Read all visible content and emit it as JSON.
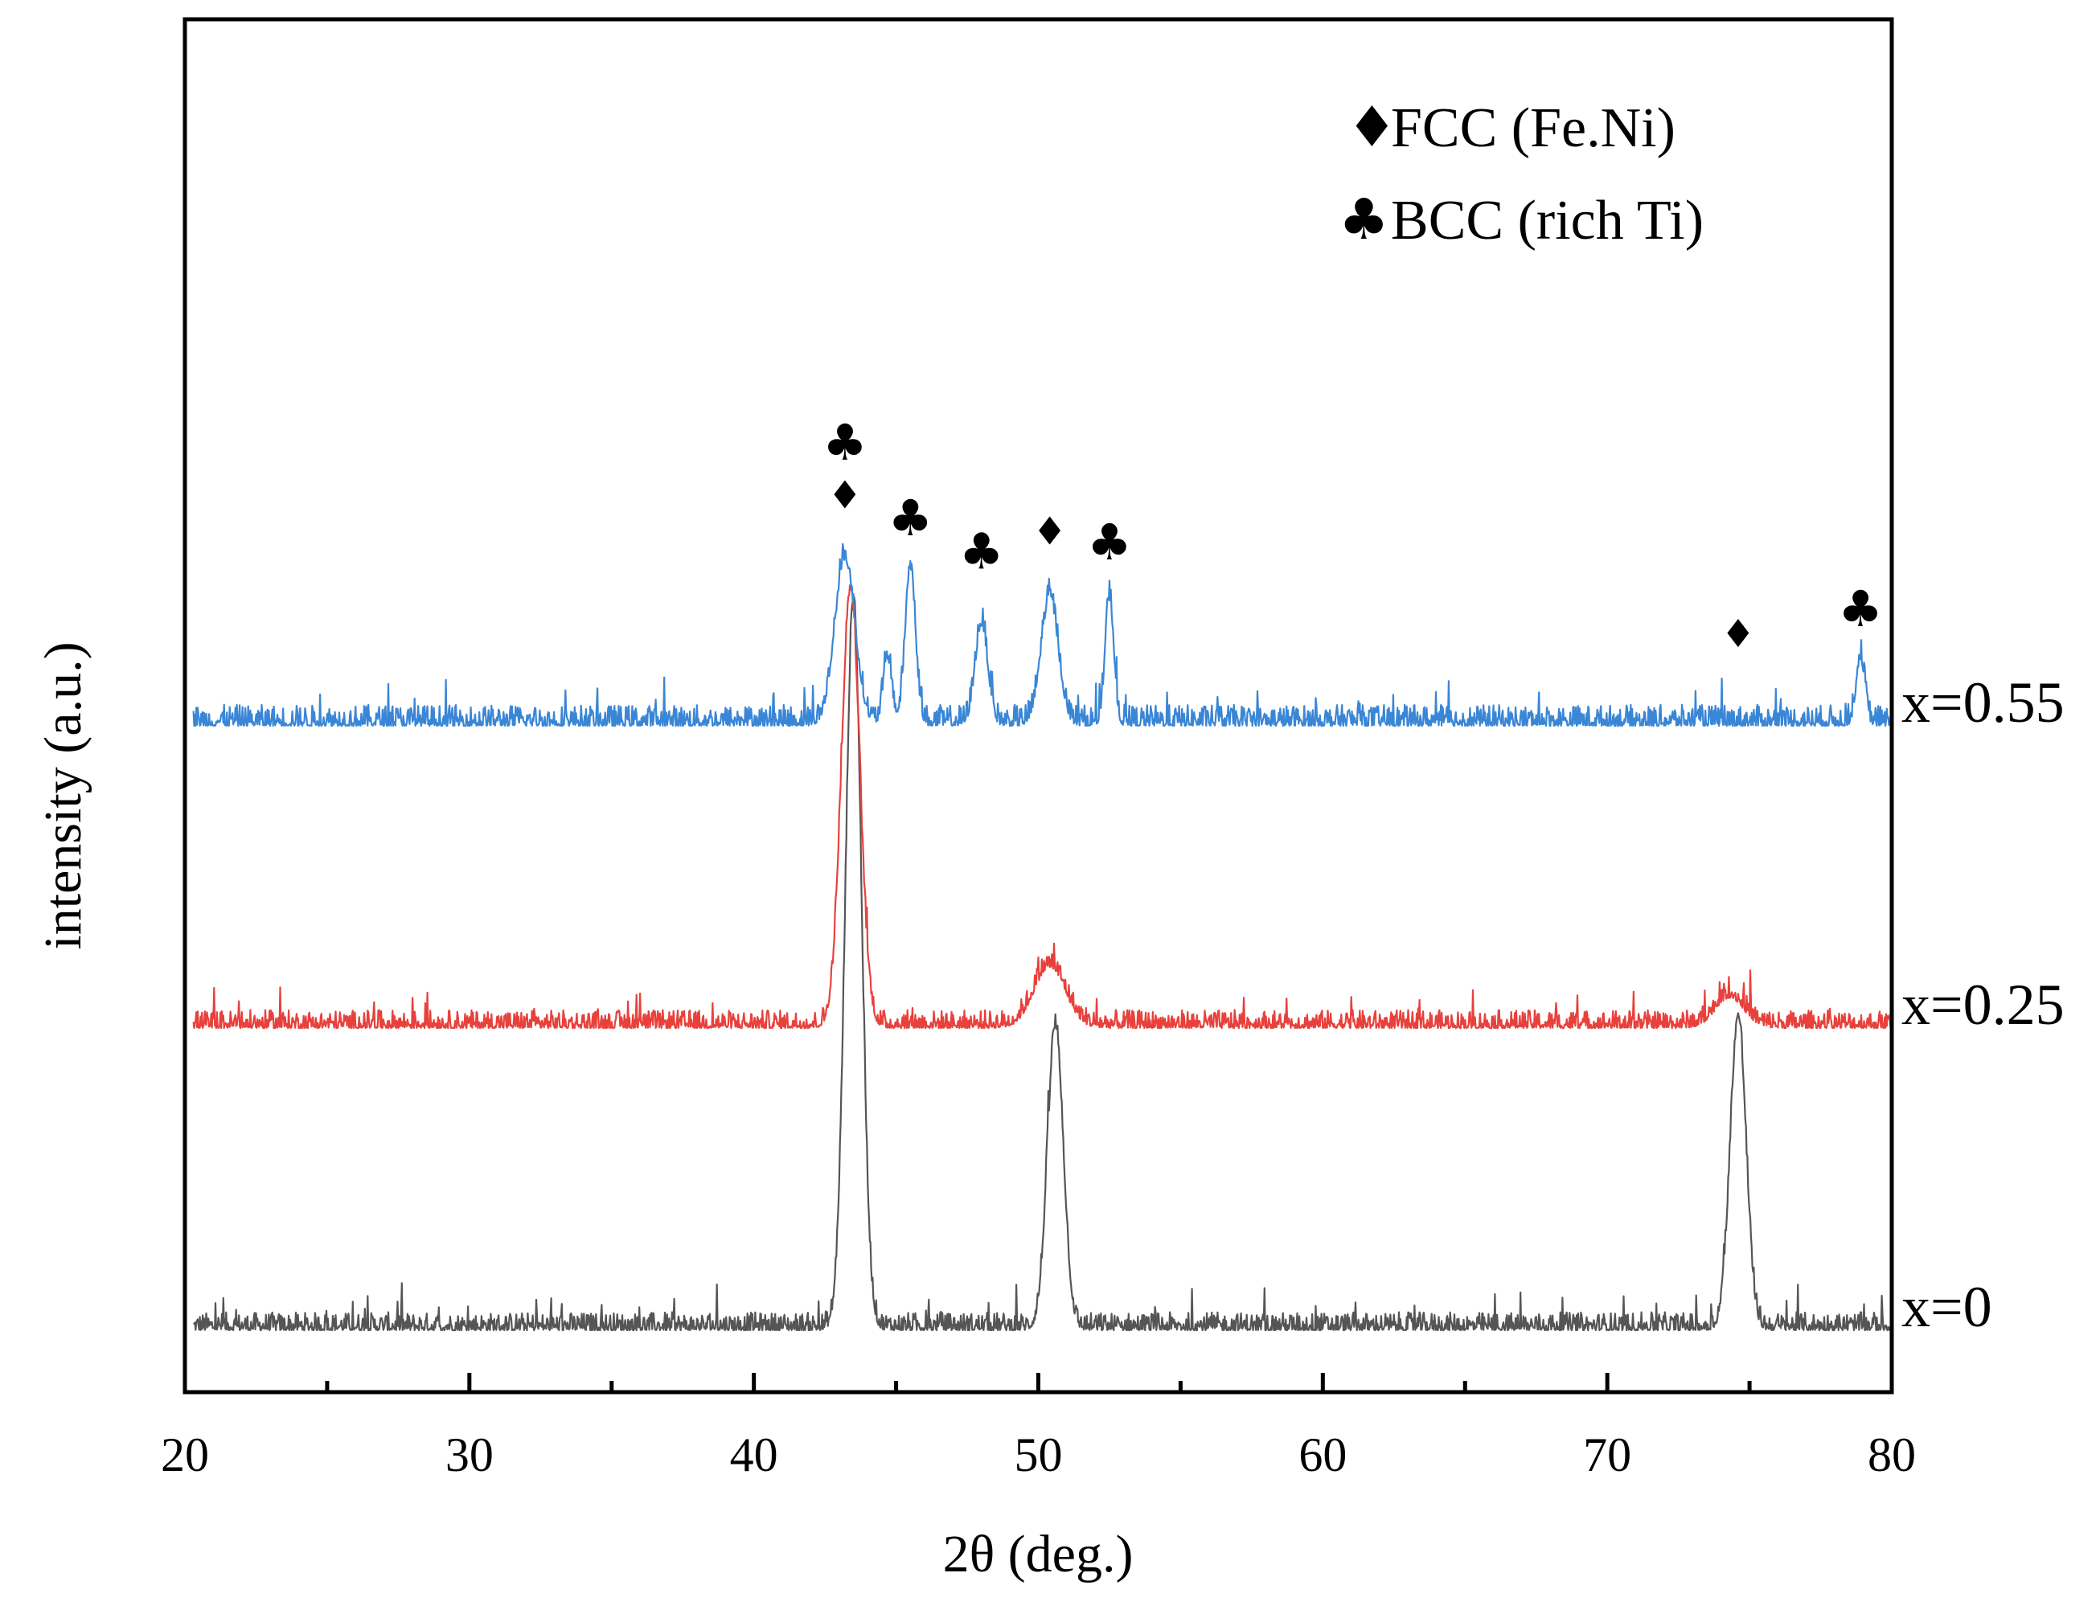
{
  "chart_data": {
    "type": "line",
    "xlabel": "2θ (deg.)",
    "ylabel": "intensity (a.u.)",
    "xlim": [
      20,
      80
    ],
    "major_ticks": [
      20,
      30,
      40,
      50,
      60,
      70,
      80
    ],
    "minor_ticks": [
      25,
      35,
      45,
      55,
      65,
      75
    ],
    "tick_labels": [
      "20",
      "30",
      "40",
      "50",
      "60",
      "70",
      "80"
    ],
    "grid": false,
    "legend": {
      "placement": "top-right",
      "entries": [
        {
          "symbol": "♦",
          "label": "FCC (Fe.Ni)"
        },
        {
          "symbol": "♣",
          "label": "BCC (rich Ti)"
        }
      ]
    },
    "series": [
      {
        "name": "x=0",
        "color": "#555555",
        "baseline": 0,
        "noise": 0.06,
        "noise_from": 20.3,
        "peaks": [
          {
            "x": 43.5,
            "h": 2.42,
            "w": 0.28
          },
          {
            "x": 50.6,
            "h": 1.0,
            "w": 0.28
          },
          {
            "x": 74.6,
            "h": 1.03,
            "w": 0.28
          }
        ]
      },
      {
        "name": "x=0.25",
        "color": "#e8413c",
        "baseline": 1.0,
        "noise": 0.06,
        "noise_from": 20.3,
        "peaks": [
          {
            "x": 43.4,
            "h": 1.45,
            "w": 0.32
          },
          {
            "x": 50.4,
            "h": 0.2,
            "w": 0.55
          },
          {
            "x": 74.3,
            "h": 0.1,
            "w": 0.5
          }
        ]
      },
      {
        "name": "x=0.55",
        "color": "#3a86d6",
        "baseline": 2.0,
        "noise": 0.07,
        "noise_from": 20.3,
        "peaks": [
          {
            "x": 43.2,
            "h": 0.55,
            "w": 0.35
          },
          {
            "x": 44.7,
            "h": 0.22,
            "w": 0.15
          },
          {
            "x": 45.5,
            "h": 0.52,
            "w": 0.18
          },
          {
            "x": 48.0,
            "h": 0.33,
            "w": 0.22
          },
          {
            "x": 50.4,
            "h": 0.42,
            "w": 0.3
          },
          {
            "x": 52.5,
            "h": 0.42,
            "w": 0.15
          },
          {
            "x": 78.9,
            "h": 0.22,
            "w": 0.15
          }
        ]
      }
    ],
    "annotations": [
      {
        "symbol": "♣",
        "x": 43.2,
        "y": 2.88
      },
      {
        "symbol": "♦",
        "x": 43.2,
        "y": 2.72
      },
      {
        "symbol": "♣",
        "x": 45.5,
        "y": 2.63
      },
      {
        "symbol": "♣",
        "x": 48.0,
        "y": 2.52
      },
      {
        "symbol": "♦",
        "x": 50.4,
        "y": 2.6
      },
      {
        "symbol": "♣",
        "x": 52.5,
        "y": 2.55
      },
      {
        "symbol": "♦",
        "x": 74.6,
        "y": 2.26
      },
      {
        "symbol": "♣",
        "x": 78.9,
        "y": 2.33
      }
    ]
  }
}
